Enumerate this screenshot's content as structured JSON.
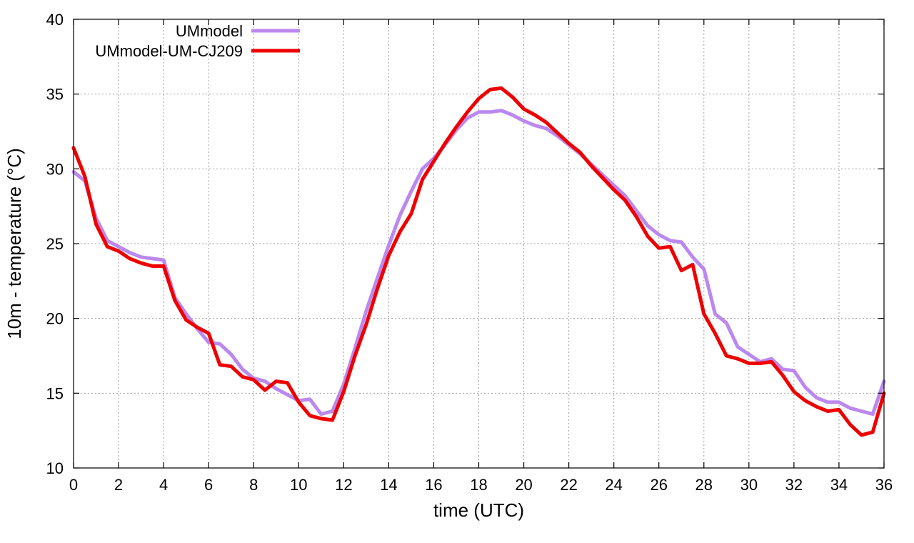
{
  "chart_data": {
    "type": "line",
    "title": "",
    "xlabel": "time (UTC)",
    "ylabel": "10m - temperature (°C)",
    "xlim": [
      0,
      36
    ],
    "ylim": [
      10,
      40
    ],
    "xticks": [
      0,
      2,
      4,
      6,
      8,
      10,
      12,
      14,
      16,
      18,
      20,
      22,
      24,
      26,
      28,
      30,
      32,
      34,
      36
    ],
    "yticks": [
      10,
      15,
      20,
      25,
      30,
      35,
      40
    ],
    "grid": true,
    "legend_position": "top-left",
    "series": [
      {
        "name": "UMmodel",
        "color": "#bb88ee",
        "x": [
          0,
          0.5,
          1,
          1.5,
          2,
          2.5,
          3,
          3.5,
          4,
          4.5,
          5,
          5.5,
          6,
          6.5,
          7,
          7.5,
          8,
          8.5,
          9,
          9.5,
          10,
          10.5,
          11,
          11.5,
          12,
          12.5,
          13,
          13.5,
          14,
          14.5,
          15,
          15.5,
          16,
          16.5,
          17,
          17.5,
          18,
          18.5,
          19,
          19.5,
          20,
          20.5,
          21,
          21.5,
          22,
          22.5,
          23,
          23.5,
          24,
          24.5,
          25,
          25.5,
          26,
          26.5,
          27,
          27.5,
          28,
          28.5,
          29,
          29.5,
          30,
          30.5,
          31,
          31.5,
          32,
          32.5,
          33,
          33.5,
          34,
          34.5,
          35,
          35.5,
          36
        ],
        "values": [
          29.8,
          29.2,
          26.7,
          25.2,
          24.8,
          24.4,
          24.1,
          24.0,
          23.9,
          21.4,
          20.3,
          19.3,
          18.4,
          18.3,
          17.6,
          16.6,
          16.0,
          15.8,
          15.3,
          14.9,
          14.5,
          14.6,
          13.6,
          13.8,
          15.6,
          18.0,
          20.5,
          22.7,
          24.9,
          26.9,
          28.5,
          30.0,
          30.7,
          31.6,
          32.6,
          33.4,
          33.8,
          33.8,
          33.9,
          33.6,
          33.2,
          32.9,
          32.7,
          32.2,
          31.6,
          31.0,
          30.3,
          29.6,
          28.9,
          28.2,
          27.2,
          26.2,
          25.6,
          25.2,
          25.1,
          24.1,
          23.3,
          20.3,
          19.7,
          18.1,
          17.6,
          17.1,
          17.3,
          16.6,
          16.5,
          15.4,
          14.7,
          14.4,
          14.4,
          14.0,
          13.8,
          13.6,
          15.8
        ]
      },
      {
        "name": "UMmodel-UM-CJ209",
        "color": "#ee0000",
        "x": [
          0,
          0.5,
          1,
          1.5,
          2,
          2.5,
          3,
          3.5,
          4,
          4.5,
          5,
          5.5,
          6,
          6.5,
          7,
          7.5,
          8,
          8.5,
          9,
          9.5,
          10,
          10.5,
          11,
          11.5,
          12,
          12.5,
          13,
          13.5,
          14,
          14.5,
          15,
          15.5,
          16,
          16.5,
          17,
          17.5,
          18,
          18.5,
          19,
          19.5,
          20,
          20.5,
          21,
          21.5,
          22,
          22.5,
          23,
          23.5,
          24,
          24.5,
          25,
          25.5,
          26,
          26.5,
          27,
          27.5,
          28,
          28.5,
          29,
          29.5,
          30,
          30.5,
          31,
          31.5,
          32,
          32.5,
          33,
          33.5,
          34,
          34.5,
          35,
          35.5,
          36
        ],
        "values": [
          31.4,
          29.5,
          26.3,
          24.8,
          24.5,
          24.0,
          23.7,
          23.5,
          23.5,
          21.2,
          19.9,
          19.4,
          19.0,
          16.9,
          16.8,
          16.1,
          15.9,
          15.2,
          15.8,
          15.7,
          14.4,
          13.5,
          13.3,
          13.2,
          15.1,
          17.5,
          19.6,
          22.0,
          24.2,
          25.8,
          27.0,
          29.3,
          30.5,
          31.7,
          32.8,
          33.8,
          34.7,
          35.3,
          35.4,
          34.8,
          34.0,
          33.6,
          33.1,
          32.4,
          31.7,
          31.1,
          30.2,
          29.4,
          28.6,
          27.9,
          26.8,
          25.5,
          24.7,
          24.8,
          23.2,
          23.6,
          20.3,
          19.0,
          17.5,
          17.3,
          17.0,
          17.0,
          17.1,
          16.2,
          15.1,
          14.5,
          14.1,
          13.8,
          13.9,
          12.9,
          12.2,
          12.4,
          15.0
        ]
      }
    ]
  }
}
